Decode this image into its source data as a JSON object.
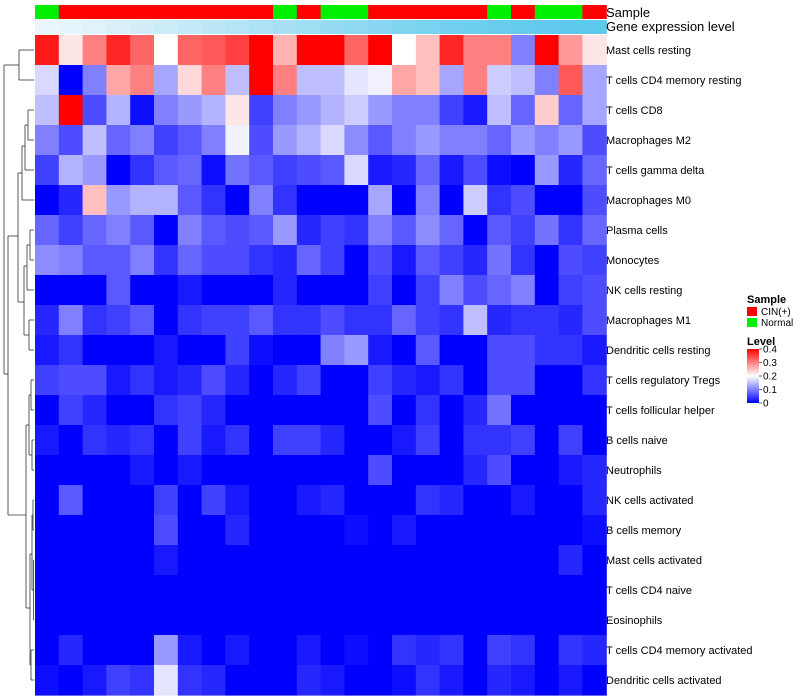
{
  "chart_data": {
    "type": "heatmap",
    "title": "",
    "annotations": {
      "sample_title": "Sample",
      "gene_expression_title": "Gene expression level",
      "sample_groups": [
        "N",
        "C",
        "C",
        "C",
        "C",
        "C",
        "C",
        "C",
        "C",
        "C",
        "N",
        "C",
        "N",
        "N",
        "C",
        "C",
        "C",
        "C",
        "C",
        "N",
        "C",
        "N",
        "N",
        "C"
      ]
    },
    "group_labels": {
      "C": "CIN(+)",
      "N": "Normal"
    },
    "group_colors": {
      "C": "#ff0000",
      "N": "#00ee00"
    },
    "gene_expression_level": [
      0.05,
      0.08,
      0.12,
      0.16,
      0.2,
      0.25,
      0.3,
      0.35,
      0.4,
      0.45,
      0.5,
      0.55,
      0.6,
      0.65,
      0.7,
      0.75,
      0.8,
      0.84,
      0.88,
      0.91,
      0.94,
      0.96,
      0.98,
      1.0
    ],
    "gene_expression_colors": {
      "low": "#f2f8fc",
      "high": "#5bc8ec"
    },
    "rows": [
      "Mast cells resting",
      "T cells CD4 memory resting",
      "T cells CD8",
      "Macrophages M2",
      "T cells gamma delta",
      "Macrophages M0",
      "Plasma cells",
      "Monocytes",
      "NK cells resting",
      "Macrophages M1",
      "Dendritic cells resting",
      "T cells regulatory  Tregs",
      "T cells follicular helper",
      "B cells naive",
      "Neutrophils",
      "NK cells activated",
      "B cells memory",
      "Mast cells activated",
      "T cells CD4 naive",
      "Eosinophils",
      "T cells CD4 memory activated",
      "Dendritic cells activated"
    ],
    "values": [
      [
        0.38,
        0.22,
        0.3,
        0.37,
        0.32,
        0.2,
        0.32,
        0.33,
        0.35,
        0.4,
        0.26,
        0.4,
        0.4,
        0.32,
        0.4,
        0.2,
        0.25,
        0.37,
        0.3,
        0.3,
        0.1,
        0.4,
        0.28,
        0.22
      ],
      [
        0.17,
        0.0,
        0.1,
        0.27,
        0.3,
        0.13,
        0.23,
        0.3,
        0.15,
        0.4,
        0.3,
        0.15,
        0.15,
        0.18,
        0.19,
        0.27,
        0.25,
        0.13,
        0.3,
        0.16,
        0.15,
        0.1,
        0.33,
        0.13
      ],
      [
        0.15,
        0.4,
        0.06,
        0.14,
        0.01,
        0.1,
        0.12,
        0.14,
        0.22,
        0.05,
        0.1,
        0.12,
        0.14,
        0.16,
        0.12,
        0.1,
        0.1,
        0.05,
        0.02,
        0.15,
        0.08,
        0.24,
        0.08,
        0.13
      ],
      [
        0.1,
        0.06,
        0.15,
        0.08,
        0.1,
        0.05,
        0.07,
        0.1,
        0.19,
        0.06,
        0.12,
        0.14,
        0.17,
        0.11,
        0.07,
        0.1,
        0.12,
        0.1,
        0.1,
        0.08,
        0.12,
        0.1,
        0.12,
        0.06
      ],
      [
        0.05,
        0.14,
        0.12,
        0.0,
        0.04,
        0.07,
        0.08,
        0.01,
        0.09,
        0.07,
        0.05,
        0.06,
        0.07,
        0.17,
        0.02,
        0.03,
        0.08,
        0.02,
        0.06,
        0.01,
        0.0,
        0.12,
        0.03,
        0.08
      ],
      [
        0.0,
        0.03,
        0.25,
        0.12,
        0.14,
        0.14,
        0.07,
        0.04,
        0.0,
        0.1,
        0.04,
        0.0,
        0.0,
        0.0,
        0.13,
        0.0,
        0.1,
        0.0,
        0.16,
        0.04,
        0.06,
        0.0,
        0.0,
        0.06
      ],
      [
        0.08,
        0.05,
        0.08,
        0.1,
        0.07,
        0.0,
        0.1,
        0.07,
        0.06,
        0.07,
        0.12,
        0.03,
        0.05,
        0.04,
        0.1,
        0.07,
        0.11,
        0.08,
        0.0,
        0.07,
        0.05,
        0.09,
        0.04,
        0.08
      ],
      [
        0.11,
        0.1,
        0.07,
        0.07,
        0.1,
        0.04,
        0.08,
        0.06,
        0.06,
        0.04,
        0.03,
        0.08,
        0.05,
        0.0,
        0.06,
        0.02,
        0.07,
        0.05,
        0.03,
        0.09,
        0.04,
        0.0,
        0.06,
        0.05
      ],
      [
        0.0,
        0.0,
        0.0,
        0.07,
        0.0,
        0.0,
        0.02,
        0.0,
        0.0,
        0.0,
        0.03,
        0.0,
        0.0,
        0.0,
        0.05,
        0.0,
        0.05,
        0.1,
        0.06,
        0.08,
        0.1,
        0.0,
        0.05,
        0.06
      ],
      [
        0.03,
        0.1,
        0.04,
        0.05,
        0.07,
        0.0,
        0.04,
        0.05,
        0.05,
        0.07,
        0.04,
        0.04,
        0.06,
        0.04,
        0.04,
        0.08,
        0.05,
        0.04,
        0.15,
        0.03,
        0.04,
        0.04,
        0.03,
        0.06
      ],
      [
        0.02,
        0.04,
        0.0,
        0.0,
        0.0,
        0.02,
        0.0,
        0.0,
        0.05,
        0.01,
        0.0,
        0.0,
        0.1,
        0.12,
        0.02,
        0.0,
        0.07,
        0.0,
        0.0,
        0.06,
        0.06,
        0.04,
        0.04,
        0.02
      ],
      [
        0.05,
        0.06,
        0.06,
        0.02,
        0.04,
        0.02,
        0.03,
        0.06,
        0.03,
        0.0,
        0.03,
        0.05,
        0.0,
        0.0,
        0.05,
        0.03,
        0.02,
        0.04,
        0.0,
        0.06,
        0.06,
        0.0,
        0.0,
        0.04
      ],
      [
        0.0,
        0.05,
        0.03,
        0.0,
        0.0,
        0.04,
        0.05,
        0.03,
        0.0,
        0.0,
        0.0,
        0.0,
        0.0,
        0.0,
        0.06,
        0.0,
        0.04,
        0.0,
        0.03,
        0.09,
        0.0,
        0.0,
        0.0,
        0.0
      ],
      [
        0.02,
        0.0,
        0.04,
        0.03,
        0.04,
        0.0,
        0.05,
        0.02,
        0.04,
        0.0,
        0.05,
        0.05,
        0.03,
        0.0,
        0.0,
        0.02,
        0.05,
        0.0,
        0.04,
        0.04,
        0.05,
        0.0,
        0.05,
        0.0
      ],
      [
        0.0,
        0.0,
        0.0,
        0.0,
        0.02,
        0.0,
        0.02,
        0.0,
        0.0,
        0.0,
        0.0,
        0.0,
        0.0,
        0.0,
        0.06,
        0.0,
        0.0,
        0.0,
        0.03,
        0.06,
        0.0,
        0.0,
        0.02,
        0.03
      ],
      [
        0.0,
        0.07,
        0.0,
        0.0,
        0.0,
        0.05,
        0.0,
        0.05,
        0.02,
        0.0,
        0.0,
        0.02,
        0.03,
        0.0,
        0.0,
        0.0,
        0.04,
        0.03,
        0.0,
        0.0,
        0.02,
        0.0,
        0.0,
        0.03
      ],
      [
        0.0,
        0.0,
        0.0,
        0.0,
        0.0,
        0.06,
        0.0,
        0.0,
        0.03,
        0.0,
        0.0,
        0.0,
        0.0,
        0.01,
        0.0,
        0.02,
        0.0,
        0.0,
        0.0,
        0.0,
        0.0,
        0.0,
        0.0,
        0.01
      ],
      [
        0.0,
        0.0,
        0.0,
        0.0,
        0.0,
        0.02,
        0.0,
        0.0,
        0.0,
        0.0,
        0.0,
        0.0,
        0.0,
        0.0,
        0.0,
        0.0,
        0.0,
        0.0,
        0.0,
        0.0,
        0.0,
        0.0,
        0.03,
        0.0
      ],
      [
        0.0,
        0.0,
        0.0,
        0.0,
        0.0,
        0.0,
        0.0,
        0.0,
        0.0,
        0.0,
        0.0,
        0.0,
        0.0,
        0.0,
        0.0,
        0.0,
        0.0,
        0.0,
        0.0,
        0.0,
        0.0,
        0.0,
        0.0,
        0.0
      ],
      [
        0.0,
        0.0,
        0.0,
        0.0,
        0.0,
        0.0,
        0.0,
        0.0,
        0.0,
        0.0,
        0.0,
        0.0,
        0.0,
        0.0,
        0.0,
        0.0,
        0.0,
        0.0,
        0.0,
        0.0,
        0.0,
        0.0,
        0.0,
        0.0
      ],
      [
        0.0,
        0.03,
        0.0,
        0.0,
        0.0,
        0.12,
        0.02,
        0.0,
        0.02,
        0.0,
        0.0,
        0.02,
        0.0,
        0.01,
        0.0,
        0.04,
        0.03,
        0.04,
        0.0,
        0.05,
        0.04,
        0.0,
        0.04,
        0.03
      ],
      [
        0.01,
        0.0,
        0.02,
        0.05,
        0.04,
        0.18,
        0.04,
        0.03,
        0.0,
        0.0,
        0.0,
        0.03,
        0.02,
        0.0,
        0.0,
        0.01,
        0.04,
        0.02,
        0.0,
        0.03,
        0.02,
        0.0,
        0.02,
        0.0
      ]
    ],
    "color_scale": {
      "min": 0,
      "mid": 0.2,
      "max": 0.4,
      "low": "#0000ff",
      "midColor": "#ffffff",
      "high": "#ff0000"
    },
    "legend": {
      "sample_title": "Sample",
      "sample_entries": [
        "CIN(+)",
        "Normal"
      ],
      "level_title": "Level",
      "level_ticks": [
        0.4,
        0.3,
        0.2,
        0.1,
        0
      ],
      "placement": "right"
    }
  }
}
